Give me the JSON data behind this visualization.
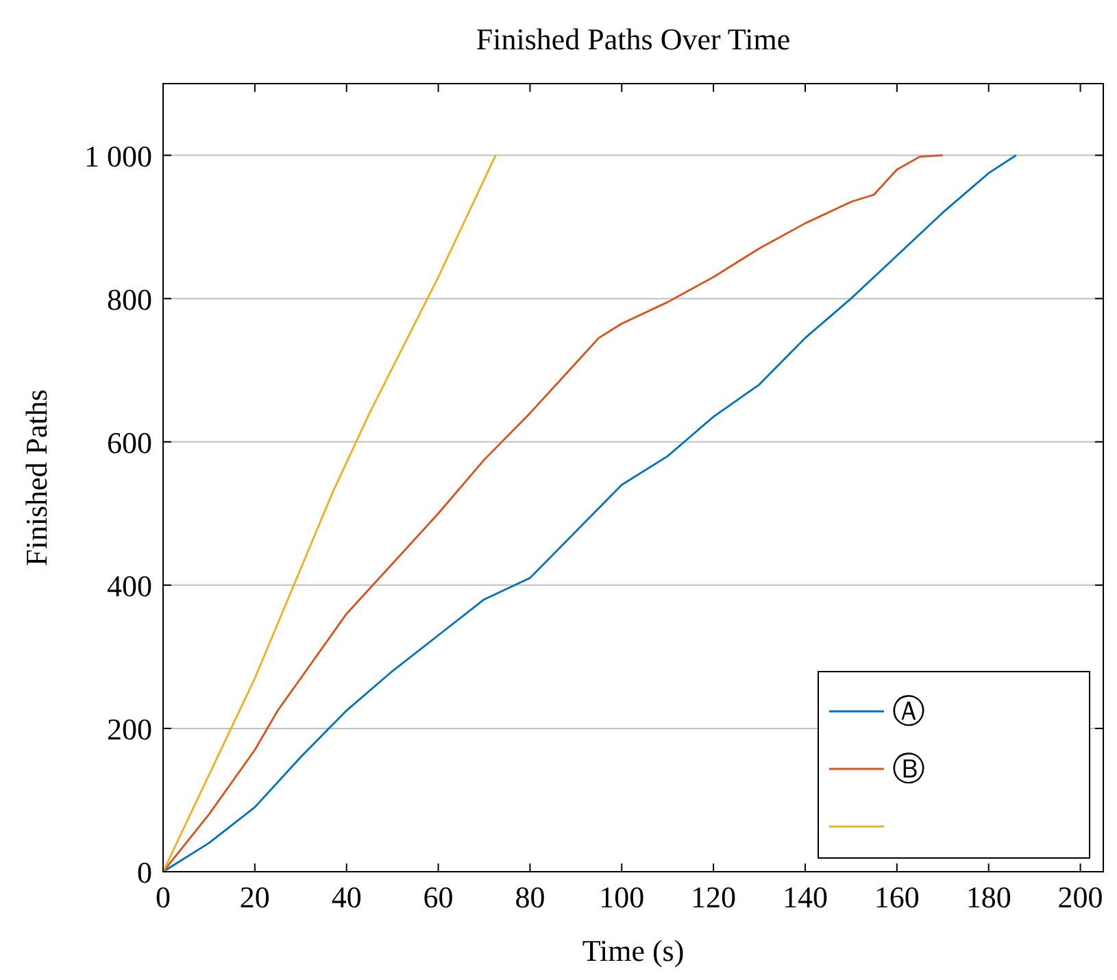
{
  "chart_data": {
    "type": "line",
    "title": "Finished Paths Over Time",
    "xlabel": "Time (s)",
    "ylabel": "Finished Paths",
    "xlim": [
      0,
      205
    ],
    "ylim": [
      0,
      1100
    ],
    "xticks": [
      0,
      20,
      40,
      60,
      80,
      100,
      120,
      140,
      160,
      180,
      200
    ],
    "yticks": [
      0,
      200,
      400,
      600,
      800,
      {
        "value": 1000,
        "label": "1 000"
      }
    ],
    "grid": "y",
    "legend": "bottom right",
    "marker": "none",
    "line_style": "solid",
    "series": [
      {
        "name": "Ⓐ",
        "color": "#0072bd",
        "x": [
          0,
          10,
          20,
          30,
          40,
          50,
          60,
          70,
          80,
          90,
          100,
          110,
          120,
          130,
          140,
          150,
          160,
          170,
          180,
          186
        ],
        "values": [
          0,
          40,
          90,
          160,
          225,
          280,
          330,
          380,
          410,
          475,
          540,
          580,
          635,
          680,
          745,
          800,
          860,
          920,
          975,
          1000
        ]
      },
      {
        "name": "Ⓑ",
        "color": "#d95319",
        "x": [
          0,
          10,
          20,
          25,
          30,
          40,
          50,
          60,
          70,
          80,
          90,
          95,
          100,
          110,
          120,
          130,
          140,
          150,
          155,
          160,
          165,
          170
        ],
        "values": [
          0,
          80,
          170,
          225,
          270,
          360,
          430,
          500,
          575,
          640,
          710,
          745,
          765,
          795,
          830,
          870,
          905,
          935,
          945,
          980,
          998,
          1000
        ]
      },
      {
        "color": "#edb120",
        "x": [
          0,
          20,
          37,
          45,
          60,
          72.5
        ],
        "values": [
          0,
          270,
          530,
          640,
          830,
          1000
        ]
      }
    ]
  }
}
